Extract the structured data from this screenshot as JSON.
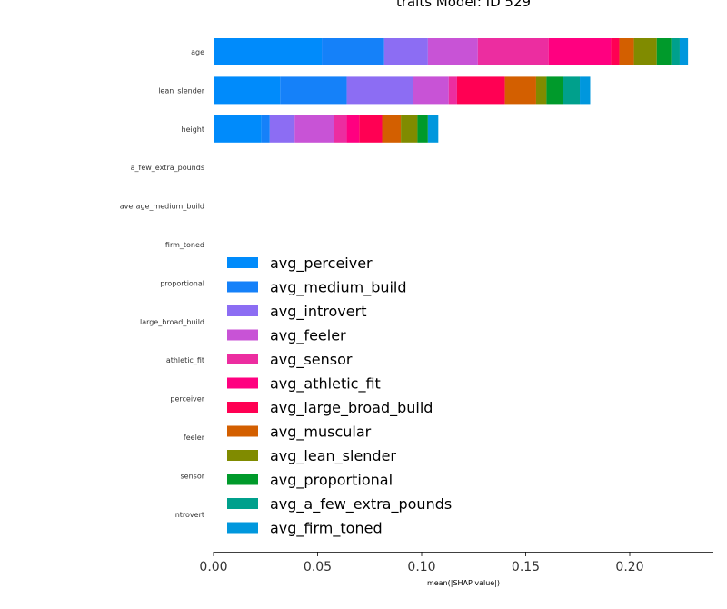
{
  "chart_data": {
    "type": "bar",
    "stacked": true,
    "orientation": "horizontal",
    "title": "traits Model: ID 529",
    "xlabel": "mean(|SHAP value|)",
    "ylabel": "",
    "xlim": [
      0,
      0.24
    ],
    "xticks": [
      "0.00",
      "0.05",
      "0.10",
      "0.15",
      "0.20"
    ],
    "xtick_values": [
      0,
      0.05,
      0.1,
      0.15,
      0.2
    ],
    "grid": false,
    "legend_position": "lower-left",
    "categories": [
      "age",
      "lean_slender",
      "height",
      "a_few_extra_pounds",
      "average_medium_build",
      "firm_toned",
      "proportional",
      "large_broad_build",
      "athletic_fit",
      "perceiver",
      "feeler",
      "sensor",
      "introvert"
    ],
    "series": [
      {
        "name": "avg_perceiver",
        "color": "#008bfb",
        "values": [
          0.052,
          0.032,
          0.023,
          0,
          0,
          0,
          0,
          0,
          0,
          0,
          0,
          0,
          0
        ]
      },
      {
        "name": "avg_medium_build",
        "color": "#1581f9",
        "values": [
          0.03,
          0.032,
          0.004,
          0,
          0,
          0,
          0,
          0,
          0,
          0,
          0,
          0,
          0
        ]
      },
      {
        "name": "avg_introvert",
        "color": "#8c6df3",
        "values": [
          0.021,
          0.032,
          0.012,
          0,
          0,
          0,
          0,
          0,
          0,
          0,
          0,
          0,
          0
        ]
      },
      {
        "name": "avg_feeler",
        "color": "#c853d6",
        "values": [
          0.024,
          0.017,
          0.019,
          0,
          0,
          0,
          0,
          0,
          0,
          0,
          0,
          0,
          0
        ]
      },
      {
        "name": "avg_sensor",
        "color": "#ec2da0",
        "values": [
          0.034,
          0.004,
          0.006,
          0,
          0,
          0,
          0,
          0,
          0,
          0,
          0,
          0,
          0
        ]
      },
      {
        "name": "avg_athletic_fit",
        "color": "#ff0080",
        "values": [
          0.03,
          0.0,
          0.006,
          0,
          0,
          0,
          0,
          0,
          0,
          0,
          0,
          0,
          0
        ]
      },
      {
        "name": "avg_large_broad_build",
        "color": "#ff0053",
        "values": [
          0.004,
          0.023,
          0.011,
          0,
          0,
          0,
          0,
          0,
          0,
          0,
          0,
          0,
          0
        ]
      },
      {
        "name": "avg_muscular",
        "color": "#d35f00",
        "values": [
          0.007,
          0.015,
          0.009,
          0,
          0,
          0,
          0,
          0,
          0,
          0,
          0,
          0,
          0
        ]
      },
      {
        "name": "avg_lean_slender",
        "color": "#808b00",
        "values": [
          0.011,
          0.005,
          0.008,
          0,
          0,
          0,
          0,
          0,
          0,
          0,
          0,
          0,
          0
        ]
      },
      {
        "name": "avg_proportional",
        "color": "#009a2b",
        "values": [
          0.007,
          0.008,
          0.005,
          0,
          0,
          0,
          0,
          0,
          0,
          0,
          0,
          0,
          0
        ]
      },
      {
        "name": "avg_a_few_extra_pounds",
        "color": "#00a08c",
        "values": [
          0.004,
          0.008,
          0.0,
          0,
          0,
          0,
          0,
          0,
          0,
          0,
          0,
          0,
          0
        ]
      },
      {
        "name": "avg_firm_toned",
        "color": "#0097dd",
        "values": [
          0.004,
          0.005,
          0.005,
          0,
          0,
          0,
          0,
          0,
          0,
          0,
          0,
          0,
          0
        ]
      }
    ]
  }
}
